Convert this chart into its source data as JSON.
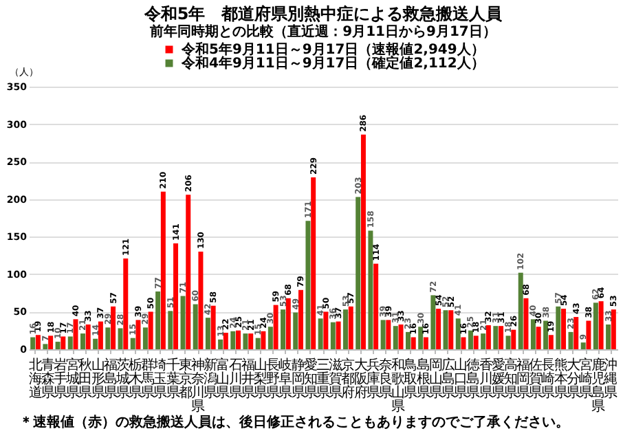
{
  "chart_data": {
    "type": "bar",
    "title": "令和5年　都道府県別熱中症による救急搬送人員",
    "subtitle": "前年同時期との比較（直近週：9月11日から9月17日）",
    "ylabel": "（人）",
    "categories": [
      "北海道",
      "青森県",
      "岩手県",
      "宮城県",
      "秋田県",
      "山形県",
      "福島県",
      "茨城県",
      "栃木県",
      "群馬県",
      "埼玉県",
      "千葉県",
      "東京都",
      "神奈川県",
      "新潟県",
      "富山県",
      "石川県",
      "福井県",
      "山梨県",
      "長野県",
      "岐阜県",
      "静岡県",
      "愛知県",
      "三重県",
      "滋賀県",
      "京都府",
      "大阪府",
      "兵庫県",
      "奈良県",
      "和歌山県",
      "鳥取県",
      "島根県",
      "岡山県",
      "広島県",
      "山口県",
      "徳島県",
      "香川県",
      "愛媛県",
      "高知県",
      "福岡県",
      "佐賀県",
      "長崎県",
      "熊本県",
      "大分県",
      "宮崎県",
      "鹿児島県",
      "沖縄県"
    ],
    "series": [
      {
        "name": "令和5年9月11日～9月17日（速報値2,949人）",
        "color": "#ff0000",
        "values": [
          19,
          18,
          17,
          40,
          33,
          37,
          57,
          121,
          39,
          50,
          210,
          141,
          206,
          130,
          58,
          22,
          25,
          21,
          24,
          59,
          68,
          79,
          229,
          50,
          37,
          57,
          286,
          114,
          39,
          33,
          16,
          16,
          54,
          52,
          16,
          18,
          32,
          31,
          26,
          68,
          30,
          19,
          54,
          43,
          38,
          64,
          53
        ]
      },
      {
        "name": "令和4年9月11日～9月17日（確定値2,112人）",
        "color": "#548235",
        "values": [
          16,
          7,
          10,
          17,
          21,
          14,
          29,
          28,
          15,
          29,
          77,
          51,
          71,
          60,
          42,
          13,
          24,
          21,
          15,
          30,
          53,
          49,
          171,
          41,
          36,
          53,
          203,
          158,
          39,
          31,
          23,
          30,
          72,
          52,
          41,
          25,
          21,
          31,
          18,
          102,
          40,
          38,
          57,
          23,
          9,
          62,
          33
        ]
      }
    ],
    "ylim": [
      0,
      350
    ],
    "yticks": [
      0,
      50,
      100,
      150,
      200,
      250,
      300,
      350
    ],
    "grid": "y",
    "legend": "top",
    "data_labels": true,
    "annotations": [
      "＊速報値（赤）の救急搬送人員は、後日修正されることもありますのでご了承ください。"
    ]
  }
}
